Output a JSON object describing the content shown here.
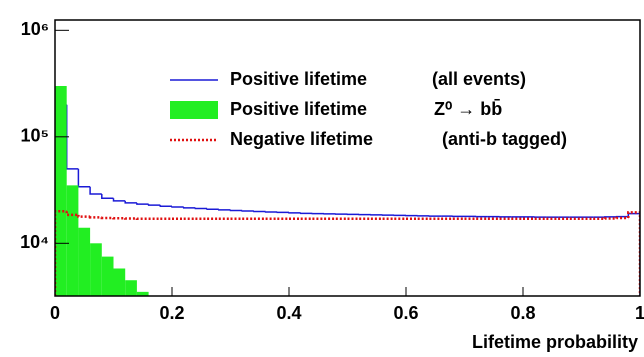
{
  "chart_data": {
    "type": "histogram",
    "xlabel": "Lifetime probability",
    "bins": [
      0,
      0.02,
      0.04,
      0.06,
      0.08,
      0.1,
      0.12,
      0.14,
      0.16,
      0.18,
      0.2,
      0.22,
      0.24,
      0.26,
      0.28,
      0.3,
      0.32,
      0.34,
      0.36,
      0.38,
      0.4,
      0.42,
      0.44,
      0.46,
      0.48,
      0.5,
      0.52,
      0.54,
      0.56,
      0.58,
      0.6,
      0.62,
      0.64,
      0.66,
      0.68,
      0.7,
      0.72,
      0.74,
      0.76,
      0.78,
      0.8,
      0.82,
      0.84,
      0.86,
      0.88,
      0.9,
      0.92,
      0.94,
      0.96,
      0.98,
      1
    ],
    "series": [
      {
        "name": "Positive lifetime",
        "note": "(all events)",
        "style": "step",
        "color": "#1a1ad6",
        "values": [
          200000,
          50000,
          34000,
          29000,
          26500,
          25000,
          24000,
          23300,
          22800,
          22300,
          21900,
          21500,
          21200,
          20900,
          20600,
          20300,
          20100,
          19900,
          19700,
          19500,
          19300,
          19100,
          19000,
          18900,
          18800,
          18700,
          18600,
          18500,
          18400,
          18300,
          18200,
          18100,
          18000,
          18000,
          17900,
          17900,
          17800,
          17800,
          17700,
          17700,
          17700,
          17600,
          17600,
          17600,
          17600,
          17600,
          17600,
          17700,
          17800,
          19000
        ]
      },
      {
        "name": "Positive lifetime",
        "note": "Z⁰ → bb̄",
        "style": "filled",
        "color": "#22ee22",
        "values": [
          300000,
          35000,
          14000,
          10000,
          7500,
          5800,
          4500,
          3500,
          0,
          0,
          0,
          0,
          0,
          0,
          0,
          0,
          0,
          0,
          0,
          0,
          0,
          0,
          0,
          0,
          0,
          0,
          0,
          0,
          0,
          0,
          0,
          0,
          0,
          0,
          0,
          0,
          0,
          0,
          0,
          0,
          0,
          0,
          0,
          0,
          0,
          0,
          0,
          0,
          0,
          0
        ]
      },
      {
        "name": "Negative lifetime",
        "note": "(anti-b tagged)",
        "style": "dotted",
        "color": "#e01010",
        "values": [
          20000,
          18500,
          17800,
          17500,
          17300,
          17200,
          17100,
          17000,
          17000,
          17000,
          17000,
          17000,
          17000,
          17000,
          17000,
          17000,
          17000,
          17000,
          17000,
          17000,
          17000,
          17000,
          17000,
          17000,
          17000,
          17000,
          17000,
          17000,
          17000,
          17000,
          17000,
          17000,
          17000,
          17000,
          17000,
          17000,
          17000,
          17000,
          17000,
          17000,
          17000,
          17000,
          17000,
          17000,
          17000,
          17000,
          17000,
          17100,
          17300,
          19500
        ]
      }
    ],
    "xlim": [
      0,
      1
    ],
    "xticks": [
      0,
      0.2,
      0.4,
      0.6,
      0.8,
      1
    ],
    "ylim": [
      3200,
      1250000
    ],
    "log_y": true,
    "yticks": [
      {
        "value": 10000,
        "label": "10⁴"
      },
      {
        "value": 100000,
        "label": "10⁵"
      },
      {
        "value": 1000000,
        "label": "10⁶"
      }
    ]
  }
}
